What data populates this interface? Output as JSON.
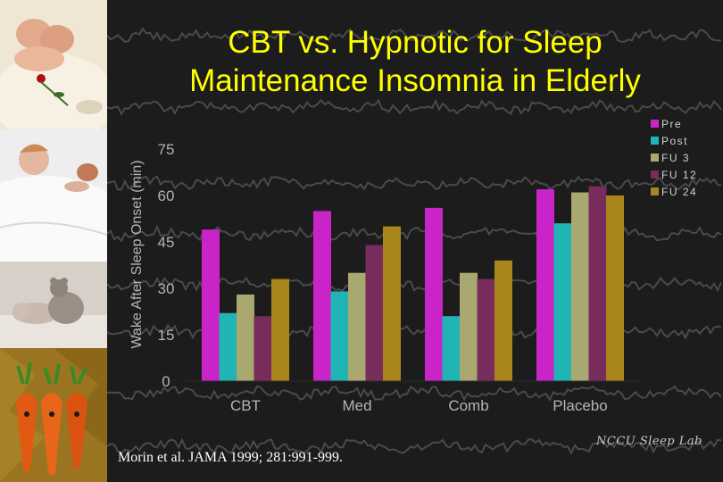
{
  "slide": {
    "title_line1": "CBT vs. Hypnotic for Sleep",
    "title_line2": "Maintenance Insomnia in Elderly",
    "citation": "Morin et al. JAMA 1999; 281:991-999.",
    "lab_signature": "NCCU Sleep Lab",
    "colors": {
      "title": "#ffff00",
      "background": "#1c1c1c",
      "eeg_trace": "#4a4a4a"
    },
    "sidebar_images": [
      "sleeping-twins-photo",
      "sleeping-baby-photo",
      "baby-with-teddy-photo",
      "carrots-costume-photo"
    ]
  },
  "chart_data": {
    "type": "bar",
    "title": "",
    "xlabel": "",
    "ylabel": "Wake After Sleep Onset (min)",
    "ylim": [
      0,
      75
    ],
    "yticks": [
      0,
      15,
      30,
      45,
      60,
      75
    ],
    "categories": [
      "CBT",
      "Med",
      "Comb",
      "Placebo"
    ],
    "legend_position": "top-right",
    "series": [
      {
        "name": "Pre",
        "color": "#c824c8",
        "values": [
          49,
          55,
          56,
          62
        ]
      },
      {
        "name": "Post",
        "color": "#20b4b4",
        "values": [
          22,
          29,
          21,
          51
        ]
      },
      {
        "name": "FU 3",
        "color": "#a8a870",
        "values": [
          28,
          35,
          35,
          61
        ]
      },
      {
        "name": "FU 12",
        "color": "#782c5c",
        "values": [
          21,
          44,
          33,
          63
        ]
      },
      {
        "name": "FU 24",
        "color": "#a8861c",
        "values": [
          33,
          50,
          39,
          60
        ]
      }
    ]
  }
}
